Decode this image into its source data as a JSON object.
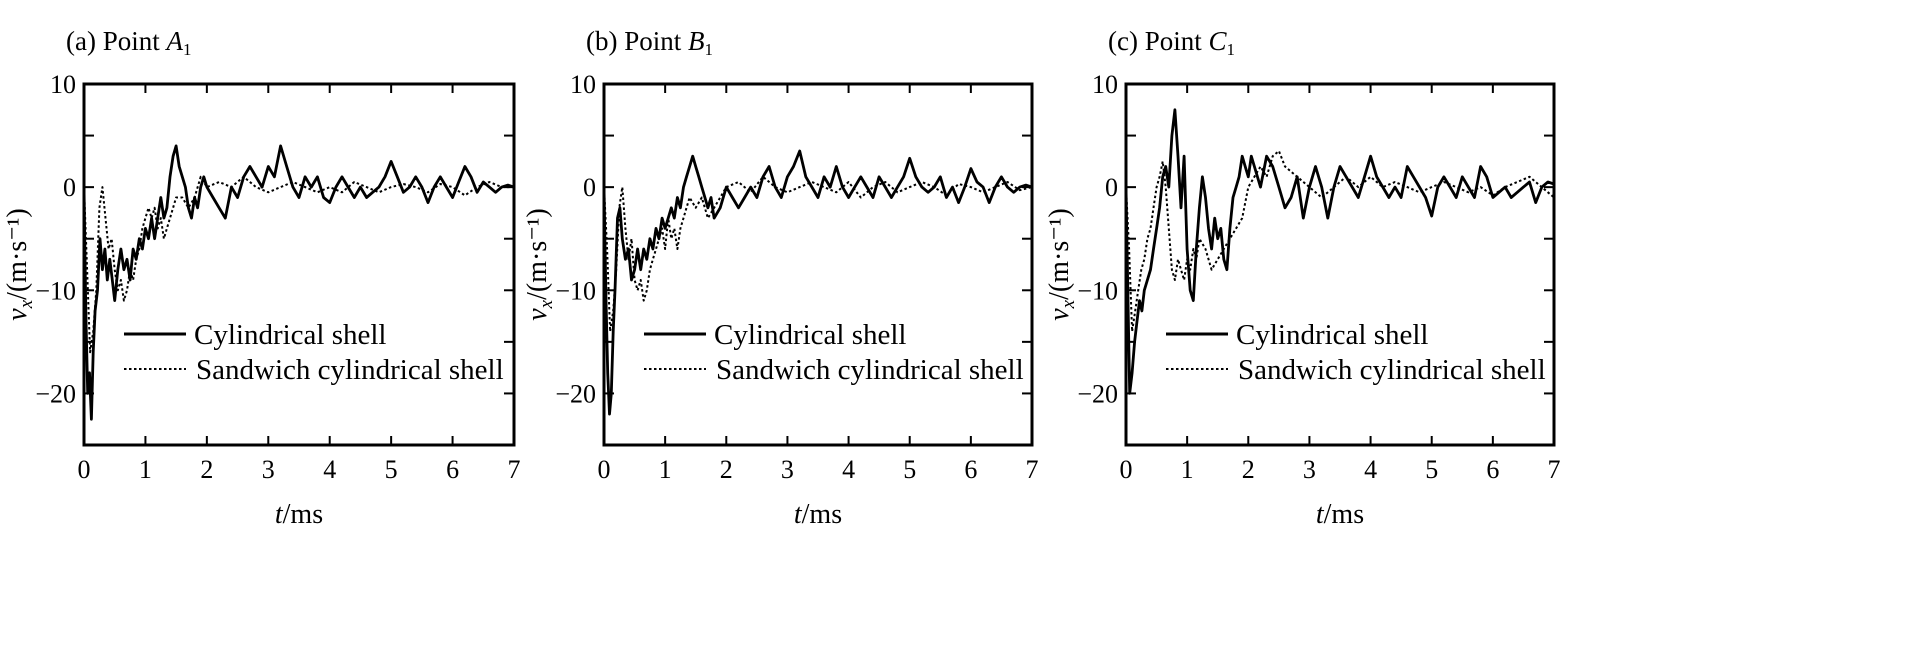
{
  "chart_data": [
    {
      "type": "line",
      "panel_label": "(a) Point ",
      "panel_point": "A",
      "panel_sub": "1",
      "xlabel_var": "t",
      "xlabel_unit": "/ms",
      "ylabel_var": "v",
      "ylabel_sub": "x",
      "ylabel_unit": "/(m·s⁻¹)",
      "xlim": [
        0,
        7
      ],
      "ylim": [
        -25,
        10
      ],
      "xticks": [
        "0",
        "1",
        "2",
        "3",
        "4",
        "5",
        "6",
        "7"
      ],
      "yticks": [
        "10",
        "0",
        "−10",
        "−20"
      ],
      "legend_position": "lower-center",
      "series": [
        {
          "name": "Cylindrical shell",
          "style": "solid",
          "x": [
            0,
            0.03,
            0.06,
            0.09,
            0.12,
            0.15,
            0.18,
            0.22,
            0.26,
            0.3,
            0.34,
            0.38,
            0.42,
            0.46,
            0.5,
            0.55,
            0.6,
            0.65,
            0.7,
            0.75,
            0.8,
            0.85,
            0.9,
            0.95,
            1.0,
            1.05,
            1.1,
            1.15,
            1.2,
            1.25,
            1.3,
            1.35,
            1.4,
            1.45,
            1.5,
            1.55,
            1.6,
            1.65,
            1.7,
            1.75,
            1.8,
            1.85,
            1.9,
            1.95,
            2.0,
            2.1,
            2.2,
            2.3,
            2.4,
            2.5,
            2.6,
            2.7,
            2.8,
            2.9,
            3.0,
            3.1,
            3.2,
            3.3,
            3.4,
            3.5,
            3.6,
            3.7,
            3.8,
            3.9,
            4.0,
            4.1,
            4.2,
            4.3,
            4.4,
            4.5,
            4.6,
            4.7,
            4.8,
            4.9,
            5.0,
            5.1,
            5.2,
            5.3,
            5.4,
            5.5,
            5.6,
            5.7,
            5.8,
            5.9,
            6.0,
            6.1,
            6.2,
            6.3,
            6.4,
            6.5,
            6.6,
            6.7,
            6.8,
            6.9,
            7.0
          ],
          "y": [
            0,
            -12,
            -20,
            -18,
            -22.5,
            -16,
            -12,
            -10,
            -5,
            -8,
            -6,
            -9,
            -7,
            -9,
            -11,
            -8,
            -6,
            -8,
            -7,
            -9,
            -6,
            -7,
            -5,
            -6,
            -4,
            -5,
            -3,
            -5,
            -3,
            -1,
            -3,
            -2,
            1,
            3,
            4,
            2,
            1,
            0,
            -2,
            -3,
            -1,
            -2,
            0,
            1,
            0,
            -1,
            -2,
            -3,
            0,
            -1,
            1,
            2,
            1,
            0,
            2,
            1,
            4,
            2,
            0,
            -1,
            1,
            0,
            1,
            -1,
            -1.5,
            0,
            1,
            0,
            -1,
            0,
            -1,
            -0.5,
            0,
            1,
            2.5,
            1,
            -0.5,
            0,
            1,
            0,
            -1.5,
            0,
            1,
            0,
            -1,
            0.5,
            2,
            1,
            -0.5,
            0.5,
            0,
            -0.5,
            0,
            0.2,
            0
          ]
        },
        {
          "name": "Sandwich cylindrical shell",
          "style": "dotted",
          "x": [
            0,
            0.05,
            0.1,
            0.15,
            0.2,
            0.25,
            0.3,
            0.35,
            0.4,
            0.45,
            0.5,
            0.55,
            0.6,
            0.65,
            0.7,
            0.75,
            0.8,
            0.85,
            0.9,
            0.95,
            1.0,
            1.05,
            1.1,
            1.15,
            1.2,
            1.25,
            1.3,
            1.35,
            1.4,
            1.45,
            1.5,
            1.6,
            1.7,
            1.8,
            1.9,
            2.0,
            2.2,
            2.4,
            2.6,
            2.8,
            3.0,
            3.2,
            3.4,
            3.6,
            3.8,
            4.0,
            4.2,
            4.4,
            4.6,
            4.8,
            5.0,
            5.2,
            5.4,
            5.6,
            5.8,
            6.0,
            6.2,
            6.4,
            6.6,
            6.8,
            7.0
          ],
          "y": [
            0,
            -8,
            -16,
            -14,
            -10,
            -2,
            0,
            -3,
            -6,
            -5,
            -8,
            -10,
            -9,
            -11,
            -10,
            -8,
            -9,
            -7,
            -6,
            -4,
            -3,
            -2,
            -3,
            -2,
            -4,
            -3,
            -5,
            -4,
            -3,
            -2,
            -1,
            -1,
            -2,
            -1,
            1,
            0,
            0.5,
            0,
            1,
            0,
            -0.5,
            0,
            0.5,
            0,
            -0.5,
            0,
            -0.5,
            0.5,
            0,
            -0.5,
            0,
            0.3,
            0,
            -0.5,
            0.3,
            0,
            -0.8,
            0,
            0.5,
            0,
            0
          ]
        }
      ]
    },
    {
      "type": "line",
      "panel_label": "(b) Point ",
      "panel_point": "B",
      "panel_sub": "1",
      "xlabel_var": "t",
      "xlabel_unit": "/ms",
      "ylabel_var": "v",
      "ylabel_sub": "x",
      "ylabel_unit": "/(m·s⁻¹)",
      "xlim": [
        0,
        7
      ],
      "ylim": [
        -25,
        10
      ],
      "xticks": [
        "0",
        "1",
        "2",
        "3",
        "4",
        "5",
        "6",
        "7"
      ],
      "yticks": [
        "10",
        "0",
        "−10",
        "−20"
      ],
      "legend_position": "lower-center",
      "series": [
        {
          "name": "Cylindrical shell",
          "style": "solid",
          "x": [
            0,
            0.03,
            0.06,
            0.09,
            0.12,
            0.15,
            0.18,
            0.22,
            0.26,
            0.3,
            0.35,
            0.4,
            0.45,
            0.5,
            0.55,
            0.6,
            0.65,
            0.7,
            0.75,
            0.8,
            0.85,
            0.9,
            0.95,
            1.0,
            1.05,
            1.1,
            1.15,
            1.2,
            1.25,
            1.3,
            1.35,
            1.4,
            1.45,
            1.5,
            1.55,
            1.6,
            1.65,
            1.7,
            1.75,
            1.8,
            1.9,
            2.0,
            2.1,
            2.2,
            2.3,
            2.4,
            2.5,
            2.6,
            2.7,
            2.8,
            2.9,
            3.0,
            3.1,
            3.2,
            3.3,
            3.4,
            3.5,
            3.6,
            3.7,
            3.8,
            3.9,
            4.0,
            4.1,
            4.2,
            4.3,
            4.4,
            4.5,
            4.6,
            4.7,
            4.8,
            4.9,
            5.0,
            5.1,
            5.2,
            5.3,
            5.4,
            5.5,
            5.6,
            5.7,
            5.8,
            5.9,
            6.0,
            6.1,
            6.2,
            6.3,
            6.4,
            6.5,
            6.6,
            6.7,
            6.8,
            6.9,
            7.0
          ],
          "y": [
            0,
            -10,
            -18,
            -22,
            -20,
            -14,
            -10,
            -3,
            -2,
            -5,
            -7,
            -6,
            -9,
            -8,
            -6,
            -8,
            -6,
            -7,
            -5,
            -6,
            -4,
            -5,
            -3,
            -4,
            -3,
            -2,
            -3,
            -1,
            -2,
            0,
            1,
            2,
            3,
            2,
            1,
            0,
            -1,
            -2,
            -1,
            -3,
            -2,
            0,
            -1,
            -2,
            -1,
            0,
            -1,
            1,
            2,
            0,
            -1,
            1,
            2,
            3.5,
            1,
            0,
            -1,
            1,
            0,
            2,
            0,
            -1,
            0,
            1,
            0,
            -1,
            1,
            0,
            -1,
            0,
            1,
            2.8,
            1,
            0,
            -0.5,
            0,
            1,
            -1,
            0,
            -1.5,
            0,
            1.8,
            0.5,
            0,
            -1.5,
            0,
            1,
            0,
            -0.5,
            0,
            0.2,
            0
          ]
        },
        {
          "name": "Sandwich cylindrical shell",
          "style": "dotted",
          "x": [
            0,
            0.05,
            0.1,
            0.15,
            0.2,
            0.25,
            0.3,
            0.35,
            0.4,
            0.45,
            0.5,
            0.55,
            0.6,
            0.65,
            0.7,
            0.75,
            0.8,
            0.85,
            0.9,
            0.95,
            1.0,
            1.05,
            1.1,
            1.15,
            1.2,
            1.25,
            1.3,
            1.35,
            1.4,
            1.5,
            1.6,
            1.7,
            1.8,
            1.9,
            2.0,
            2.2,
            2.4,
            2.6,
            2.8,
            3.0,
            3.2,
            3.4,
            3.6,
            3.8,
            4.0,
            4.2,
            4.4,
            4.6,
            4.8,
            5.0,
            5.2,
            5.4,
            5.6,
            5.8,
            6.0,
            6.2,
            6.4,
            6.6,
            6.8,
            7.0
          ],
          "y": [
            0,
            -6,
            -14,
            -12,
            -8,
            -2,
            0,
            -4,
            -7,
            -5,
            -9,
            -10,
            -9,
            -11,
            -10,
            -8,
            -7,
            -6,
            -5,
            -4,
            -6,
            -3,
            -5,
            -4,
            -6,
            -4,
            -3,
            -2,
            -1,
            -2,
            -1,
            -3,
            -2,
            -1,
            0,
            0.5,
            -0.5,
            1,
            0,
            -0.5,
            0,
            0.5,
            0,
            -0.5,
            0.5,
            -1,
            0,
            0.5,
            -0.5,
            0,
            0.5,
            0,
            -0.8,
            0.3,
            0,
            -0.5,
            0,
            0.5,
            -0.3,
            0
          ]
        }
      ]
    },
    {
      "type": "line",
      "panel_label": "(c) Point ",
      "panel_point": "C",
      "panel_sub": "1",
      "xlabel_var": "t",
      "xlabel_unit": "/ms",
      "ylabel_var": "v",
      "ylabel_sub": "x",
      "ylabel_unit": "/(m·s⁻¹)",
      "xlim": [
        0,
        7
      ],
      "ylim": [
        -25,
        10
      ],
      "xticks": [
        "0",
        "1",
        "2",
        "3",
        "4",
        "5",
        "6",
        "7"
      ],
      "yticks": [
        "10",
        "0",
        "−10",
        "−20"
      ],
      "legend_position": "lower-center",
      "series": [
        {
          "name": "Cylindrical shell",
          "style": "solid",
          "x": [
            0,
            0.03,
            0.06,
            0.1,
            0.14,
            0.18,
            0.22,
            0.26,
            0.3,
            0.35,
            0.4,
            0.45,
            0.5,
            0.55,
            0.6,
            0.65,
            0.7,
            0.75,
            0.8,
            0.85,
            0.9,
            0.95,
            1.0,
            1.05,
            1.1,
            1.15,
            1.2,
            1.25,
            1.3,
            1.35,
            1.4,
            1.45,
            1.5,
            1.55,
            1.6,
            1.65,
            1.7,
            1.75,
            1.8,
            1.85,
            1.9,
            1.95,
            2.0,
            2.05,
            2.1,
            2.2,
            2.3,
            2.4,
            2.5,
            2.6,
            2.7,
            2.8,
            2.9,
            3.0,
            3.1,
            3.2,
            3.3,
            3.4,
            3.5,
            3.6,
            3.7,
            3.8,
            3.9,
            4.0,
            4.1,
            4.2,
            4.3,
            4.4,
            4.5,
            4.6,
            4.7,
            4.8,
            4.9,
            5.0,
            5.1,
            5.2,
            5.3,
            5.4,
            5.5,
            5.6,
            5.7,
            5.8,
            5.9,
            6.0,
            6.1,
            6.2,
            6.3,
            6.4,
            6.5,
            6.6,
            6.7,
            6.8,
            6.9,
            7.0
          ],
          "y": [
            0,
            -10,
            -20,
            -18,
            -15,
            -13,
            -11,
            -12,
            -10,
            -9,
            -8,
            -6,
            -4,
            -2,
            1,
            2,
            0,
            5,
            7.5,
            3,
            -2,
            3,
            -6,
            -10,
            -11,
            -6,
            -2,
            1,
            -1,
            -4,
            -6,
            -3,
            -5,
            -4,
            -7,
            -8,
            -4,
            -1,
            0,
            1,
            3,
            2,
            1,
            3,
            2,
            0,
            3,
            2,
            0,
            -2,
            -1,
            1,
            -3,
            0,
            2,
            0,
            -3,
            0,
            2,
            1,
            0,
            -1,
            1,
            3,
            1,
            0,
            -1,
            0,
            -1,
            2,
            1,
            0,
            -1,
            -2.8,
            0,
            1,
            0,
            -1,
            1,
            0,
            -1,
            2,
            1,
            -1,
            -0.5,
            0,
            -1,
            -0.5,
            0,
            0.5,
            -1.5,
            0,
            0.5,
            0.3
          ]
        },
        {
          "name": "Sandwich cylindrical shell",
          "style": "dotted",
          "x": [
            0,
            0.05,
            0.1,
            0.15,
            0.2,
            0.25,
            0.3,
            0.35,
            0.4,
            0.45,
            0.5,
            0.55,
            0.6,
            0.65,
            0.7,
            0.75,
            0.8,
            0.85,
            0.9,
            0.95,
            1.0,
            1.05,
            1.1,
            1.15,
            1.2,
            1.3,
            1.4,
            1.5,
            1.6,
            1.7,
            1.8,
            1.9,
            2.0,
            2.1,
            2.2,
            2.3,
            2.4,
            2.5,
            2.6,
            2.8,
            3.0,
            3.2,
            3.4,
            3.6,
            3.8,
            4.0,
            4.2,
            4.4,
            4.6,
            4.8,
            5.0,
            5.2,
            5.4,
            5.6,
            5.8,
            6.0,
            6.2,
            6.4,
            6.6,
            6.8,
            7.0
          ],
          "y": [
            0,
            -6,
            -14,
            -12,
            -10,
            -8,
            -7,
            -5,
            -4,
            -2,
            0,
            1,
            2.5,
            0,
            -4,
            -8,
            -9,
            -7,
            -8,
            -9,
            -7,
            -8,
            -6,
            -7,
            -5,
            -6,
            -8,
            -7,
            -6,
            -5,
            -4,
            -3,
            0,
            1,
            2,
            1,
            3,
            3.5,
            2,
            1,
            0,
            -1,
            0,
            1,
            0,
            1,
            0,
            0.5,
            0,
            -0.5,
            0,
            0.5,
            0,
            -0.5,
            0,
            -0.8,
            0,
            0.5,
            1,
            0,
            -1
          ]
        }
      ]
    }
  ]
}
